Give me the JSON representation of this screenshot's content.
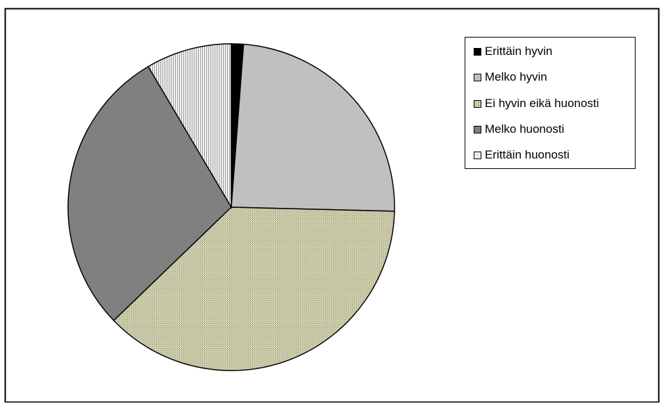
{
  "chart_data": {
    "type": "pie",
    "slices": [
      {
        "label": "Erittäin hyvin",
        "value": 1.2,
        "color": "#000000",
        "pattern": "solid"
      },
      {
        "label": "Melko hyvin",
        "value": 24.2,
        "color": "#c0c0c0",
        "pattern": "solid"
      },
      {
        "label": "Ei hyvin eikä huonosti",
        "value": 37.4,
        "color": "#c6c6a4",
        "pattern": "dots"
      },
      {
        "label": "Melko huonosti",
        "value": 28.7,
        "color": "#808080",
        "pattern": "solid"
      },
      {
        "label": "Erittäin huonosti",
        "value": 8.5,
        "color": "#e0e0e0",
        "pattern": "vertical-lines"
      }
    ],
    "legend_position": "top-right"
  }
}
